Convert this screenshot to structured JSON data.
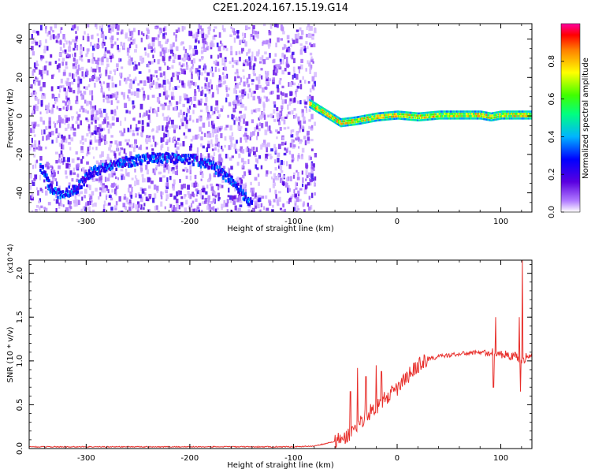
{
  "title": "C2E1.2024.167.15.19.G14",
  "chart_data": [
    {
      "type": "heatmap",
      "xlabel": "Height of straight line (km)",
      "ylabel": "Frequency (Hz)",
      "xlim": [
        -355,
        130
      ],
      "ylim": [
        -50,
        48
      ],
      "xticks": [
        -300,
        -200,
        -100,
        0,
        100
      ],
      "yticks": [
        -40,
        -20,
        0,
        20,
        40
      ],
      "colorbar": {
        "label": "Normalized spectral amplitude",
        "range": [
          0,
          1
        ],
        "ticks": [
          "0.0",
          "0.2",
          "0.4",
          "0.6",
          "0.8"
        ],
        "colormap": "rainbow (white-purple-blue-cyan-green-yellow-red-magenta)"
      },
      "features": {
        "lower_arc": [
          [
            -345,
            -25
          ],
          [
            -335,
            -37
          ],
          [
            -325,
            -40
          ],
          [
            -310,
            -37
          ],
          [
            -295,
            -28
          ],
          [
            -280,
            -26
          ],
          [
            -260,
            -23
          ],
          [
            -240,
            -21
          ],
          [
            -220,
            -21
          ],
          [
            -200,
            -22
          ],
          [
            -180,
            -25
          ],
          [
            -160,
            -33
          ],
          [
            -140,
            -46
          ]
        ],
        "main_ridge": [
          [
            -85,
            7
          ],
          [
            -70,
            2
          ],
          [
            -55,
            -3
          ],
          [
            -40,
            -2
          ],
          [
            -20,
            0
          ],
          [
            0,
            1
          ],
          [
            20,
            0
          ],
          [
            40,
            1
          ],
          [
            60,
            1
          ],
          [
            80,
            1
          ],
          [
            90,
            0
          ],
          [
            100,
            1
          ],
          [
            110,
            1
          ],
          [
            120,
            1
          ],
          [
            130,
            1
          ]
        ]
      }
    },
    {
      "type": "line",
      "xlabel": "Height of straight line (km)",
      "ylabel": "SNR (10 * v/v)",
      "y_multiplier": "(x10^4)",
      "xlim": [
        -355,
        130
      ],
      "ylim": [
        0,
        2.15
      ],
      "xticks": [
        -300,
        -200,
        -100,
        0,
        100
      ],
      "yticks": [
        0.0,
        0.5,
        1.0,
        1.5,
        2.0
      ],
      "ytick_labels": [
        "0.0",
        "0.5",
        "1.0",
        "1.5",
        "2.0"
      ],
      "color": "#e8302c",
      "x": [
        -355,
        -300,
        -200,
        -150,
        -100,
        -80,
        -60,
        -50,
        -40,
        -30,
        -20,
        -10,
        0,
        10,
        20,
        30,
        40,
        60,
        80,
        90,
        100,
        110,
        115,
        120,
        125,
        130
      ],
      "y": [
        0.02,
        0.02,
        0.02,
        0.02,
        0.02,
        0.03,
        0.08,
        0.12,
        0.25,
        0.38,
        0.48,
        0.58,
        0.68,
        0.82,
        0.95,
        1.02,
        1.05,
        1.08,
        1.1,
        1.1,
        1.08,
        1.06,
        1.05,
        1.0,
        1.05,
        1.06
      ],
      "spikes": [
        [
          -45,
          0.65
        ],
        [
          -38,
          0.92
        ],
        [
          -30,
          0.82
        ],
        [
          -20,
          0.95
        ],
        [
          -15,
          0.88
        ],
        [
          95,
          1.5
        ],
        [
          93,
          0.7
        ],
        [
          118,
          1.5
        ],
        [
          121,
          2.15
        ],
        [
          119,
          0.65
        ]
      ]
    }
  ]
}
